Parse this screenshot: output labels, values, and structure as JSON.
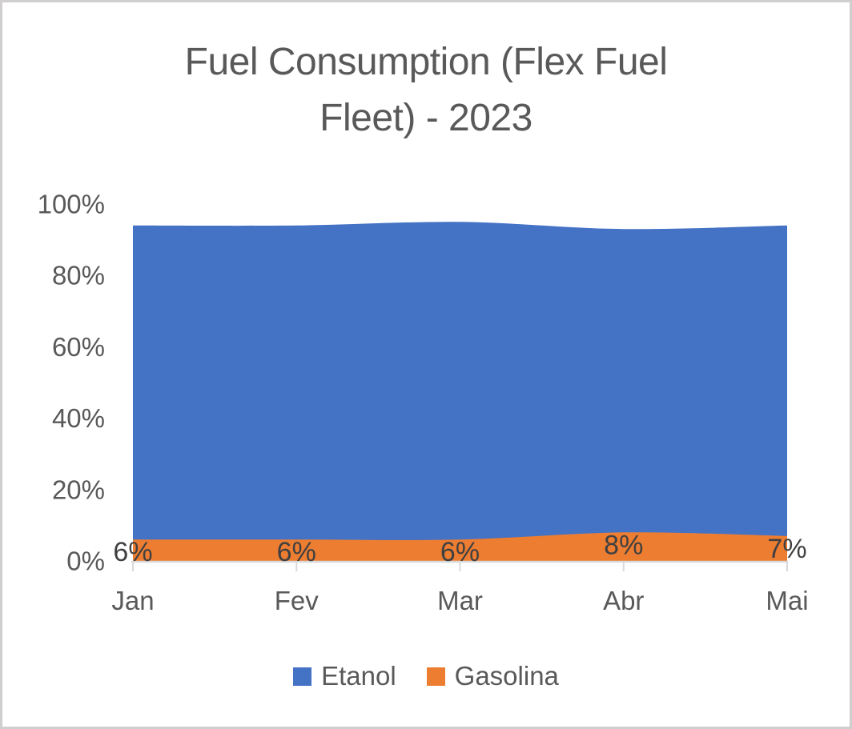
{
  "chart": {
    "title_line1": "Fuel Consumption (Flex Fuel",
    "title_line2": "Fleet) - 2023"
  },
  "chart_data": {
    "type": "area",
    "stacked": true,
    "smooth_lines": true,
    "title": "Fuel Consumption (Flex Fuel Fleet) - 2023",
    "categories": [
      "Jan",
      "Fev",
      "Mar",
      "Abr",
      "Mai"
    ],
    "series": [
      {
        "name": "Etanol",
        "color": "#4472C4",
        "values": [
          88,
          88,
          89,
          85,
          87
        ]
      },
      {
        "name": "Gasolina",
        "color": "#ED7D31",
        "values": [
          6,
          6,
          6,
          8,
          7
        ],
        "data_labels": [
          "6%",
          "6%",
          "6%",
          "8%",
          "7%"
        ]
      }
    ],
    "xlabel": "",
    "ylabel": "",
    "ylim": [
      0,
      100
    ],
    "ytick_labels": [
      "100%",
      "80%",
      "60%",
      "40%",
      "20%",
      "0%"
    ],
    "ytick_values": [
      100,
      80,
      60,
      40,
      20,
      0
    ],
    "grid": false,
    "legend_position": "bottom",
    "colors": {
      "etanol_fill": "#4472C4",
      "gasolina_fill": "#ED7D31",
      "title_text": "#595959",
      "axis_text": "#595959",
      "data_label_text": "#404040",
      "axis_line": "#D9D9D9",
      "frame_border": "#D0CECE",
      "background": "#FFFFFF"
    }
  }
}
